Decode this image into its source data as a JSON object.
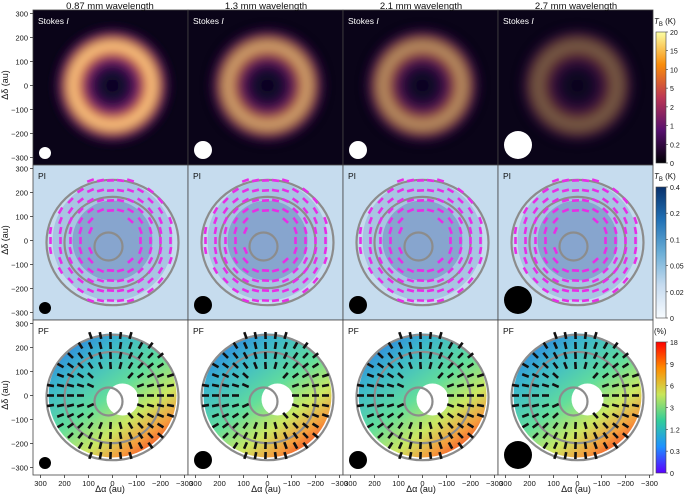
{
  "columns": [
    {
      "title": "0.87 mm wavelength",
      "beam": "small",
      "intensity": 1.0,
      "zone": "thin"
    },
    {
      "title": "1.3 mm wavelength",
      "beam": "medium",
      "intensity": 0.82,
      "zone": "mid"
    },
    {
      "title": "2.1 mm wavelength",
      "beam": "medium",
      "intensity": 0.72,
      "zone": "mid"
    },
    {
      "title": "2.7 mm wavelength",
      "beam": "large",
      "intensity": 0.45,
      "zone": "wide"
    }
  ],
  "rows": [
    {
      "key": "stokes",
      "label_prefix": "Stokes ",
      "label_italic": "I"
    },
    {
      "key": "pi",
      "label_prefix": "PI",
      "label_italic": ""
    },
    {
      "key": "pf",
      "label_prefix": "PF",
      "label_italic": ""
    }
  ],
  "y_axis": {
    "label": "Δδ (au)",
    "ticks": [
      "300",
      "200",
      "100",
      "0",
      "−100",
      "−200",
      "−300"
    ]
  },
  "x_axis": {
    "label": "Δα (au)",
    "ticks": [
      "300",
      "200",
      "100",
      "0",
      "−100",
      "−200",
      "−300"
    ]
  },
  "colorbars": [
    {
      "unit_main": "T",
      "unit_sub": "B",
      "unit_tail": " (K)",
      "ticks": [
        "20",
        "15",
        "10",
        "5",
        "2",
        "1",
        "0.2",
        "0"
      ],
      "colors": [
        "#fcffa4",
        "#f98c0a",
        "#bc3754",
        "#57106e",
        "#000004"
      ]
    },
    {
      "unit_main": "T",
      "unit_sub": "B",
      "unit_tail": " (K)",
      "ticks": [
        "0.4",
        "0.2",
        "0.1",
        "0.05",
        "0.02",
        "0"
      ],
      "colors": [
        "#08306b",
        "#2171b5",
        "#6baed6",
        "#c6dbef",
        "#f7fbff"
      ]
    },
    {
      "unit_main": "(%)",
      "unit_sub": "",
      "unit_tail": "",
      "ticks": [
        "18",
        "9",
        "6",
        "3",
        "1.2",
        "0.3",
        "0"
      ],
      "colors": [
        "#ff0000",
        "#ff8c00",
        "#c8e65a",
        "#32cd9a",
        "#1e90ff",
        "#5a00ff"
      ]
    }
  ],
  "colors": {
    "contour": "#8c8c8c",
    "pi_vectors": "#e62ee6",
    "pf_vectors": "#111111",
    "pi_background": "#c6dcee",
    "stokes_background": "#0a0418"
  }
}
